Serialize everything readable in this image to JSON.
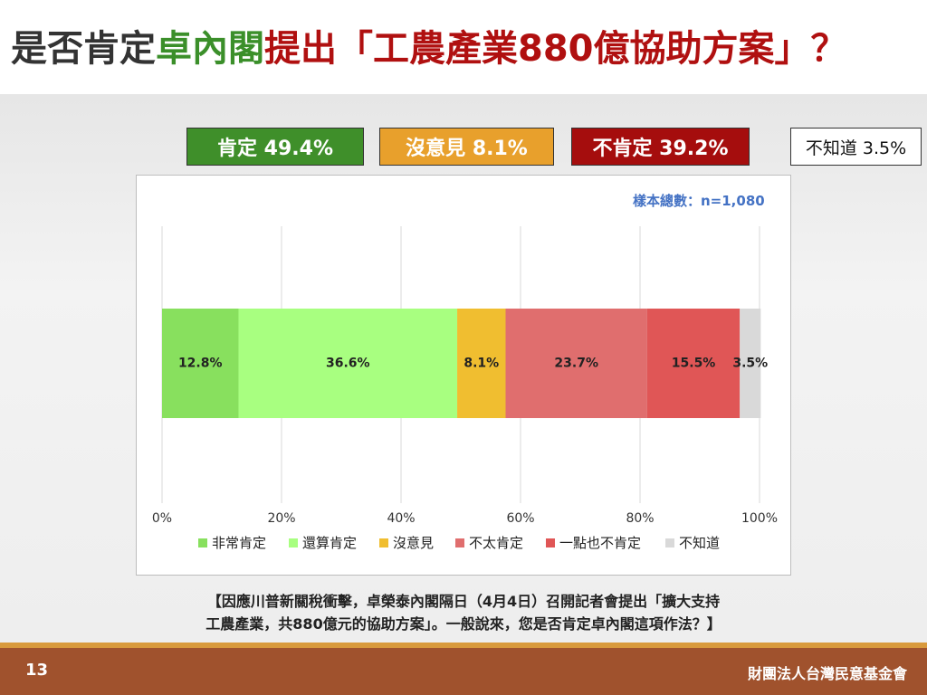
{
  "title": {
    "part1": "是否肯定",
    "part2": "卓內閣",
    "part3": "提出「工農產業880億協助方案」？"
  },
  "summary": [
    {
      "label": "肯定 49.4%",
      "bg": "#3f8f2a",
      "fg": "#ffffff"
    },
    {
      "label": "沒意見 8.1%",
      "bg": "#e8a02c",
      "fg": "#ffffff"
    },
    {
      "label": "不肯定 39.2%",
      "bg": "#a50d0d",
      "fg": "#ffffff"
    },
    {
      "label": "不知道 3.5%",
      "bg": "#ffffff",
      "fg": "#111111"
    }
  ],
  "sample_note": "樣本總數：n=1,080",
  "chart_data": {
    "type": "bar",
    "orientation": "horizontal-stacked",
    "categories": [
      ""
    ],
    "series": [
      {
        "name": "非常肯定",
        "values": [
          12.8
        ],
        "label": "12.8%",
        "color": "#88e05e"
      },
      {
        "name": "還算肯定",
        "values": [
          36.6
        ],
        "label": "36.6%",
        "color": "#a8ff80"
      },
      {
        "name": "沒意見",
        "values": [
          8.1
        ],
        "label": "8.1%",
        "color": "#f0be30"
      },
      {
        "name": "不太肯定",
        "values": [
          23.7
        ],
        "label": "23.7%",
        "color": "#e06e6e"
      },
      {
        "name": "一點也不肯定",
        "values": [
          15.5
        ],
        "label": "15.5%",
        "color": "#e05656"
      },
      {
        "name": "不知道",
        "values": [
          3.5
        ],
        "label": "3.5%",
        "color": "#d9d9d9"
      }
    ],
    "xlim": [
      0,
      100
    ],
    "xticks": [
      "0%",
      "20%",
      "40%",
      "60%",
      "80%",
      "100%"
    ],
    "grid": "vertical",
    "legend_position": "bottom"
  },
  "caption": {
    "line1": "【因應川普新關稅衝擊，卓榮泰內閣隔日（4月4日）召開記者會提出「擴大支持",
    "line2": "工農產業，共880億元的協助方案」。一般說來，您是否肯定卓內閣這項作法？】"
  },
  "footer": {
    "page": "13",
    "org": "財團法人台灣民意基金會"
  }
}
